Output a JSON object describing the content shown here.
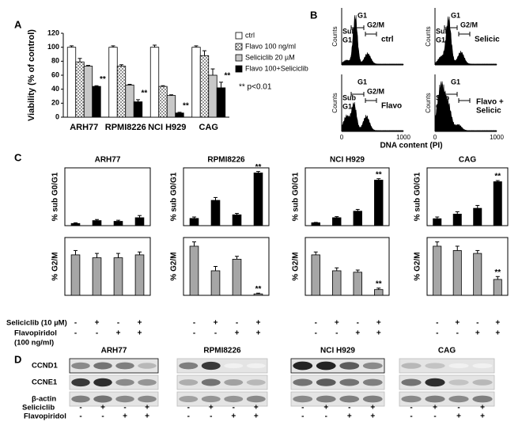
{
  "panel_labels": [
    "A",
    "B",
    "C",
    "D"
  ],
  "chart_data": [
    {
      "type": "bar",
      "y_label": "Viability (% of control)",
      "categories": [
        "ARH77",
        "RPMI8226",
        "NCI H929",
        "CAG"
      ],
      "series": [
        {
          "name": "ctrl",
          "color": "#ffffff",
          "values": [
            100,
            100,
            100,
            100
          ],
          "errors": [
            2,
            2,
            3,
            2
          ]
        },
        {
          "name": "Flavo 100 ng/ml",
          "color": "#ffffff",
          "pattern": "dots",
          "values": [
            79,
            73,
            44,
            88
          ],
          "errors": [
            5,
            2,
            1,
            7
          ]
        },
        {
          "name": "Seliciclib 20 µM",
          "color": "#c8c8c8",
          "values": [
            73,
            46,
            31,
            60
          ],
          "errors": [
            1,
            1,
            1,
            9
          ]
        },
        {
          "name": "Flavo 100+Seliciclib",
          "color": "#000000",
          "values": [
            44,
            22,
            6,
            42
          ],
          "errors": [
            1,
            3,
            1,
            8
          ],
          "markers": [
            "**",
            "**",
            "**",
            "**"
          ]
        }
      ],
      "ylim": [
        0,
        120
      ],
      "yticks": [
        0,
        20,
        40,
        60,
        80,
        100,
        120
      ],
      "legend": "right",
      "note": "** p<0.01"
    },
    {
      "type": "bar",
      "title": "ARH77",
      "y_label": "% sub G0/G1",
      "categories": [
        null,
        null,
        null,
        null
      ],
      "values": [
        3,
        7,
        6,
        11
      ],
      "errors": [
        1,
        1.5,
        1.5,
        3
      ],
      "color": "#000000",
      "ylim": [
        0,
        80
      ]
    },
    {
      "type": "bar",
      "title": "RPMI8226",
      "y_label": "% sub G0/G1",
      "categories": [
        null,
        null,
        null,
        null
      ],
      "values": [
        10,
        35,
        15,
        73
      ],
      "errors": [
        2,
        4,
        2,
        2
      ],
      "markers": [
        null,
        null,
        null,
        "**"
      ],
      "color": "#000000",
      "ylim": [
        0,
        80
      ]
    },
    {
      "type": "bar",
      "title": "NCI H929",
      "y_label": "% sub G0/G1",
      "categories": [
        null,
        null,
        null,
        null
      ],
      "values": [
        4,
        11,
        20,
        63
      ],
      "errors": [
        0.5,
        1.5,
        2.5,
        2
      ],
      "markers": [
        null,
        null,
        null,
        "**"
      ],
      "color": "#000000",
      "ylim": [
        0,
        80
      ]
    },
    {
      "type": "bar",
      "title": "CAG",
      "y_label": "% sub G0/G1",
      "categories": [
        null,
        null,
        null,
        null
      ],
      "values": [
        6,
        10,
        15,
        38
      ],
      "errors": [
        1.5,
        2,
        2.5,
        1
      ],
      "markers": [
        null,
        null,
        null,
        "**"
      ],
      "color": "#000000",
      "ylim": [
        0,
        50
      ]
    },
    {
      "type": "bar",
      "y_label": "% G2/M",
      "categories": [
        null,
        null,
        null,
        null
      ],
      "values": [
        28,
        26,
        26,
        28
      ],
      "errors": [
        3,
        3,
        3,
        2
      ],
      "color": "#a6a6a6",
      "ylim": [
        0,
        40
      ]
    },
    {
      "type": "bar",
      "y_label": "% G2/M",
      "categories": [
        null,
        null,
        null,
        null
      ],
      "values": [
        34,
        17,
        25,
        1
      ],
      "errors": [
        3,
        3,
        2,
        0.5
      ],
      "markers": [
        null,
        null,
        null,
        "**"
      ],
      "color": "#a6a6a6",
      "ylim": [
        0,
        40
      ]
    },
    {
      "type": "bar",
      "y_label": "% G2/M",
      "categories": [
        null,
        null,
        null,
        null
      ],
      "values": [
        28,
        17,
        16,
        4
      ],
      "errors": [
        2,
        2,
        1.5,
        1
      ],
      "markers": [
        null,
        null,
        null,
        "**"
      ],
      "color": "#a6a6a6",
      "ylim": [
        0,
        40
      ]
    },
    {
      "type": "bar",
      "y_label": "% G2/M",
      "categories": [
        null,
        null,
        null,
        null
      ],
      "values": [
        34,
        31,
        29,
        11
      ],
      "errors": [
        3,
        3,
        2,
        2
      ],
      "markers": [
        null,
        null,
        null,
        "**"
      ],
      "color": "#a6a6a6",
      "ylim": [
        0,
        40
      ]
    }
  ],
  "panel_b": {
    "y_label": "Counts",
    "x_label": "DNA content (PI)",
    "x_ticks": [
      0,
      1000
    ],
    "gate_labels": {
      "sub": "Sub",
      "g1": "G1",
      "g2m": "G2/M"
    },
    "plots": [
      {
        "label": [
          "ctrl"
        ]
      },
      {
        "label": [
          "Selicic"
        ]
      },
      {
        "label": [
          "Flavo"
        ]
      },
      {
        "label": [
          "Flavo +",
          "Selicic"
        ]
      }
    ]
  },
  "panel_c": {
    "treatments": [
      {
        "name": [
          "Seliciclib (10 µM)"
        ],
        "signs": [
          "-",
          "+",
          "-",
          "+"
        ]
      },
      {
        "name": [
          "Flavopiridol",
          "(100 ng/ml)"
        ],
        "signs": [
          "-",
          "-",
          "+",
          "+"
        ]
      }
    ]
  },
  "panel_d": {
    "cell_lines": [
      "ARH77",
      "RPMI8226",
      "NCI H929",
      "CAG"
    ],
    "proteins": [
      "CCND1",
      "CCNE1",
      "β-actin"
    ],
    "treatments": [
      {
        "name": "Seliciclib",
        "signs": [
          "-",
          "+",
          "-",
          "+"
        ]
      },
      {
        "name": "Flavopiridol",
        "signs": [
          "-",
          "-",
          "+",
          "+"
        ]
      }
    ]
  }
}
